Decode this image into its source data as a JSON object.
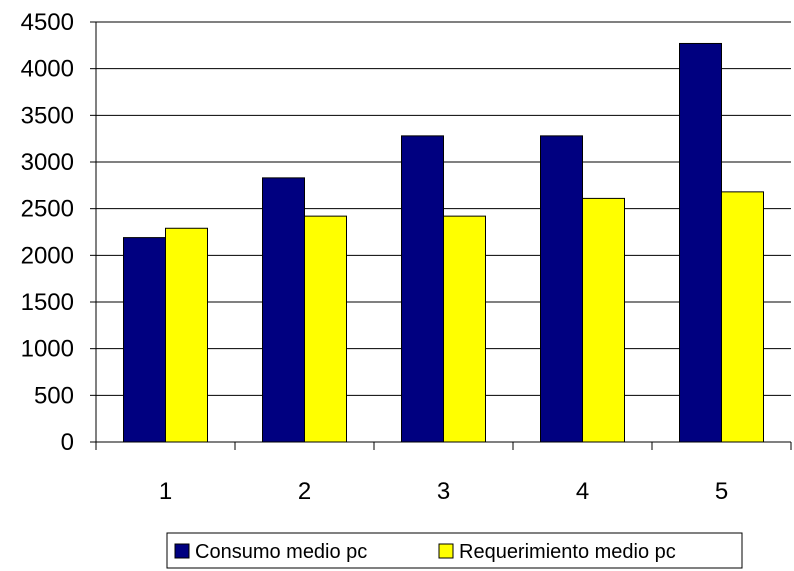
{
  "chart_data": {
    "type": "bar",
    "categories": [
      "1",
      "2",
      "3",
      "4",
      "5"
    ],
    "series": [
      {
        "name": "Consumo medio pc",
        "color": "#000080",
        "values": [
          2190,
          2830,
          3280,
          3280,
          4270
        ]
      },
      {
        "name": "Requerimiento medio pc",
        "color": "#ffff00",
        "values": [
          2290,
          2420,
          2420,
          2610,
          2680
        ]
      }
    ],
    "ylim": [
      0,
      4500
    ],
    "yticks": [
      "0",
      "500",
      "1000",
      "1500",
      "2000",
      "2500",
      "3000",
      "3500",
      "4000",
      "4500"
    ],
    "grid": true,
    "legend_position": "bottom"
  }
}
